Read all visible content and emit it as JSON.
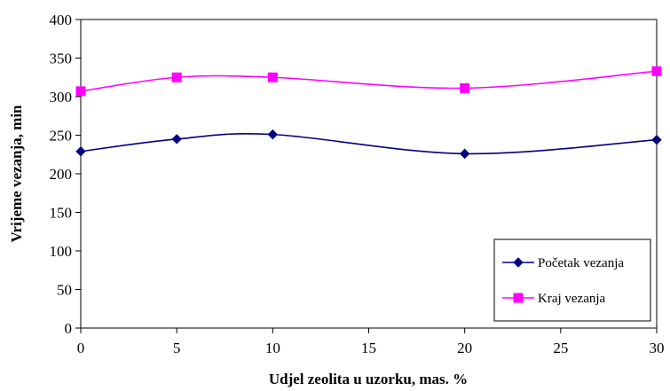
{
  "chart_data": {
    "type": "line",
    "xlabel": "Udjel zeolita u uzorku, mas. %",
    "ylabel": "Vrijeme vezanja, min",
    "xlim": [
      0,
      30
    ],
    "ylim": [
      0,
      400
    ],
    "xticks": [
      0,
      5,
      10,
      15,
      20,
      25,
      30
    ],
    "yticks": [
      0,
      50,
      100,
      150,
      200,
      250,
      300,
      350,
      400
    ],
    "grid": false,
    "smooth": true,
    "legend_position": "bottom-right",
    "series": [
      {
        "name": "Početak vezanja",
        "x": [
          0,
          5,
          10,
          20,
          30
        ],
        "values": [
          229,
          245,
          251,
          226,
          244
        ],
        "color": "#000080",
        "marker": "diamond"
      },
      {
        "name": "Kraj vezanja",
        "x": [
          0,
          5,
          10,
          20,
          30
        ],
        "values": [
          307,
          325,
          325,
          311,
          333
        ],
        "color": "#ff00ff",
        "marker": "square"
      }
    ]
  }
}
